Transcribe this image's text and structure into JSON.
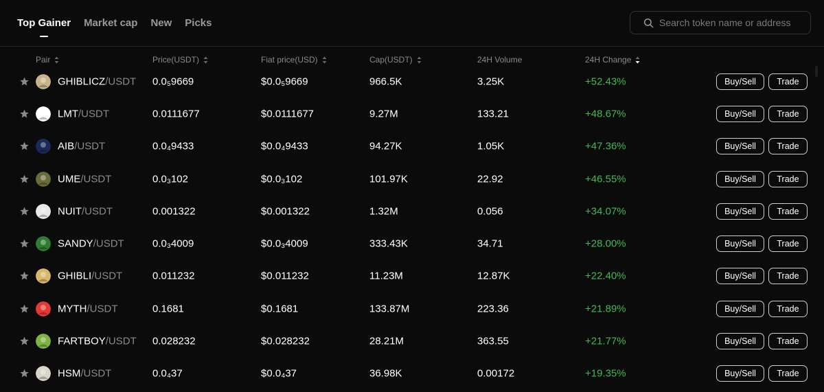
{
  "tabs": [
    {
      "label": "Top Gainer",
      "active": true
    },
    {
      "label": "Market cap",
      "active": false
    },
    {
      "label": "New",
      "active": false
    },
    {
      "label": "Picks",
      "active": false
    }
  ],
  "search": {
    "placeholder": "Search token name or address",
    "icon": "search-icon"
  },
  "columns": {
    "pair": "Pair",
    "price": "Price(USDT)",
    "fiat": "Fiat price(USD)",
    "cap": "Cap(USDT)",
    "volume": "24H Volume",
    "change": "24H Change"
  },
  "colors": {
    "positive": "#3fb950",
    "background": "#0b0b0b",
    "muted": "#8a8a8a"
  },
  "actions": {
    "buy_sell": "Buy/Sell",
    "trade": "Trade"
  },
  "rows": [
    {
      "base": "GHIBLICZ",
      "quote": "/USDT",
      "price": "0.0₅9669",
      "fiat": "$0.0₅9669",
      "cap": "966.5K",
      "volume": "3.25K",
      "change": "+52.43%",
      "avatar_color": "#c9b48a"
    },
    {
      "base": "LMT",
      "quote": "/USDT",
      "price": "0.0111677",
      "fiat": "$0.0111677",
      "cap": "9.27M",
      "volume": "133.21",
      "change": "+48.67%",
      "avatar_color": "#ffffff"
    },
    {
      "base": "AIB",
      "quote": "/USDT",
      "price": "0.0₄9433",
      "fiat": "$0.0₄9433",
      "cap": "94.27K",
      "volume": "1.05K",
      "change": "+47.36%",
      "avatar_color": "#1a2a5a"
    },
    {
      "base": "UME",
      "quote": "/USDT",
      "price": "0.0₃102",
      "fiat": "$0.0₃102",
      "cap": "101.97K",
      "volume": "22.92",
      "change": "+46.55%",
      "avatar_color": "#6b6a3a"
    },
    {
      "base": "NUIT",
      "quote": "/USDT",
      "price": "0.001322",
      "fiat": "$0.001322",
      "cap": "1.32M",
      "volume": "0.056",
      "change": "+34.07%",
      "avatar_color": "#e8e8e8"
    },
    {
      "base": "SANDY",
      "quote": "/USDT",
      "price": "0.0₃4009",
      "fiat": "$0.0₃4009",
      "cap": "333.43K",
      "volume": "34.71",
      "change": "+28.00%",
      "avatar_color": "#2e7d32"
    },
    {
      "base": "GHIBLI",
      "quote": "/USDT",
      "price": "0.011232",
      "fiat": "$0.011232",
      "cap": "11.23M",
      "volume": "12.87K",
      "change": "+22.40%",
      "avatar_color": "#d8b66a"
    },
    {
      "base": "MYTH",
      "quote": "/USDT",
      "price": "0.1681",
      "fiat": "$0.1681",
      "cap": "133.87M",
      "volume": "223.36",
      "change": "+21.89%",
      "avatar_color": "#e53935"
    },
    {
      "base": "FARTBOY",
      "quote": "/USDT",
      "price": "0.028232",
      "fiat": "$0.028232",
      "cap": "28.21M",
      "volume": "363.55",
      "change": "+21.77%",
      "avatar_color": "#7cb342"
    },
    {
      "base": "HSM",
      "quote": "/USDT",
      "price": "0.0₄37",
      "fiat": "$0.0₄37",
      "cap": "36.98K",
      "volume": "0.00172",
      "change": "+19.35%",
      "avatar_color": "#d9d4cc"
    }
  ]
}
